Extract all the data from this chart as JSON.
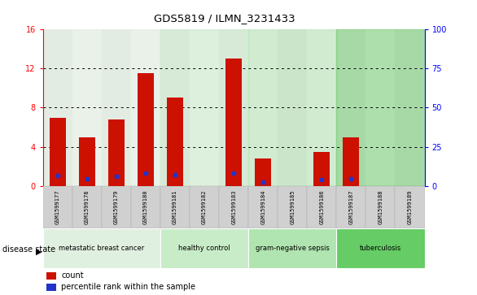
{
  "title": "GDS5819 / ILMN_3231433",
  "samples": [
    "GSM1599177",
    "GSM1599178",
    "GSM1599179",
    "GSM1599180",
    "GSM1599181",
    "GSM1599182",
    "GSM1599183",
    "GSM1599184",
    "GSM1599185",
    "GSM1599186",
    "GSM1599187",
    "GSM1599188",
    "GSM1599189"
  ],
  "counts": [
    7.0,
    5.0,
    6.8,
    11.5,
    9.0,
    0.0,
    13.0,
    2.8,
    0.0,
    3.5,
    5.0,
    0.0,
    0.0
  ],
  "percentiles_scaled": [
    6.5,
    4.5,
    6.3,
    8.0,
    7.2,
    0.0,
    8.2,
    2.5,
    0.0,
    3.8,
    4.3,
    0.0,
    0.0
  ],
  "ylim_left": [
    0,
    16
  ],
  "ylim_right": [
    0,
    100
  ],
  "yticks_left": [
    0,
    4,
    8,
    12,
    16
  ],
  "yticks_right": [
    0,
    25,
    50,
    75,
    100
  ],
  "bar_color": "#cc1100",
  "dot_color": "#2233cc",
  "disease_groups": [
    {
      "label": "metastatic breast cancer",
      "start": 0,
      "end": 3,
      "color": "#e0f0e0"
    },
    {
      "label": "healthy control",
      "start": 4,
      "end": 6,
      "color": "#c8ecc8"
    },
    {
      "label": "gram-negative sepsis",
      "start": 7,
      "end": 9,
      "color": "#b0e4b0"
    },
    {
      "label": "tuberculosis",
      "start": 10,
      "end": 12,
      "color": "#66cc66"
    }
  ],
  "legend_count": "count",
  "legend_percentile": "percentile rank within the sample",
  "bar_width": 0.55
}
